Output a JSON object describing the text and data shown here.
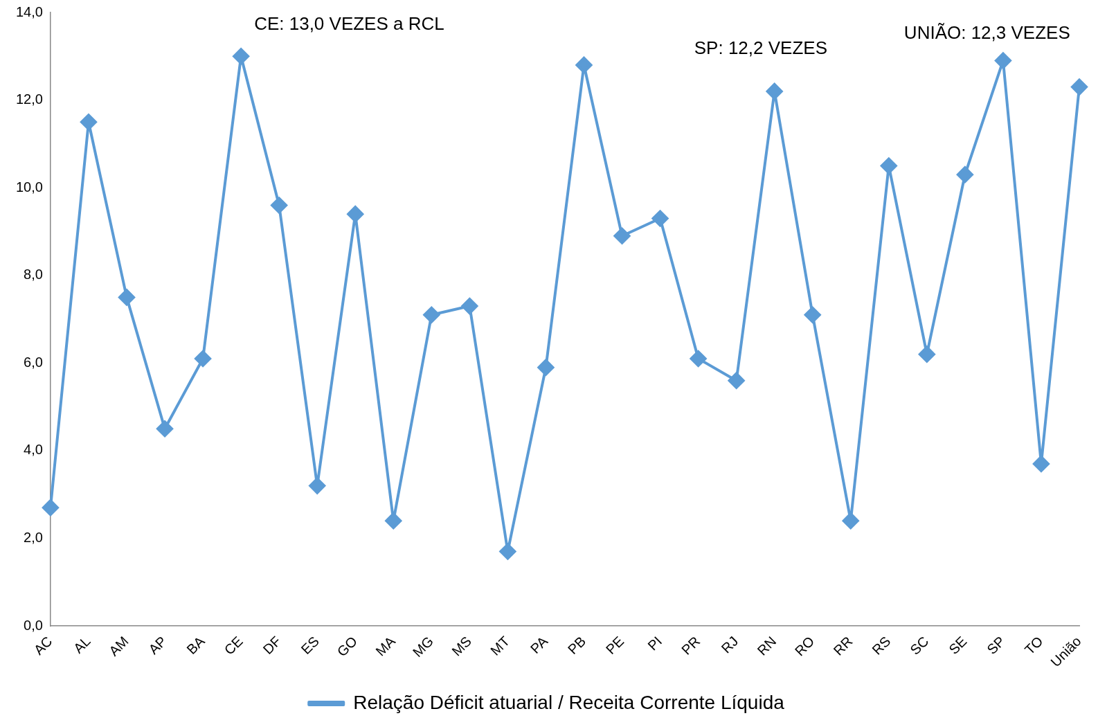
{
  "chart_data": {
    "type": "line",
    "categories": [
      "AC",
      "AL",
      "AM",
      "AP",
      "BA",
      "CE",
      "DF",
      "ES",
      "GO",
      "MA",
      "MG",
      "MS",
      "MT",
      "PA",
      "PB",
      "PE",
      "PI",
      "PR",
      "RJ",
      "RN",
      "RO",
      "RR",
      "RS",
      "SC",
      "SE",
      "SP",
      "TO",
      "União"
    ],
    "series": [
      {
        "name": "Relação Déficit atuarial / Receita Corrente Líquida",
        "color": "#5b9bd5",
        "values": [
          2.7,
          11.5,
          7.5,
          4.5,
          6.1,
          13.0,
          9.6,
          3.2,
          9.4,
          2.4,
          7.1,
          7.3,
          1.7,
          5.9,
          12.8,
          8.9,
          9.3,
          6.1,
          5.6,
          12.2,
          7.1,
          2.4,
          10.5,
          6.2,
          10.3,
          12.9,
          3.7,
          12.3
        ]
      }
    ],
    "ylim": [
      0,
      14
    ],
    "yticks": [
      {
        "value": 0,
        "label": "0,0"
      },
      {
        "value": 2,
        "label": "2,0"
      },
      {
        "value": 4,
        "label": "4,0"
      },
      {
        "value": 6,
        "label": "6,0"
      },
      {
        "value": 8,
        "label": "8,0"
      },
      {
        "value": 10,
        "label": "10,0"
      },
      {
        "value": 12,
        "label": "12,0"
      },
      {
        "value": 14,
        "label": "14,0"
      }
    ],
    "marker": "diamond",
    "line_style": "solid",
    "legend": "bottom",
    "grid": false,
    "annotations": [
      "CE: 13,0 VEZES a RCL",
      "SP: 12,2 VEZES",
      "UNIÃO: 12,3 VEZES"
    ]
  }
}
